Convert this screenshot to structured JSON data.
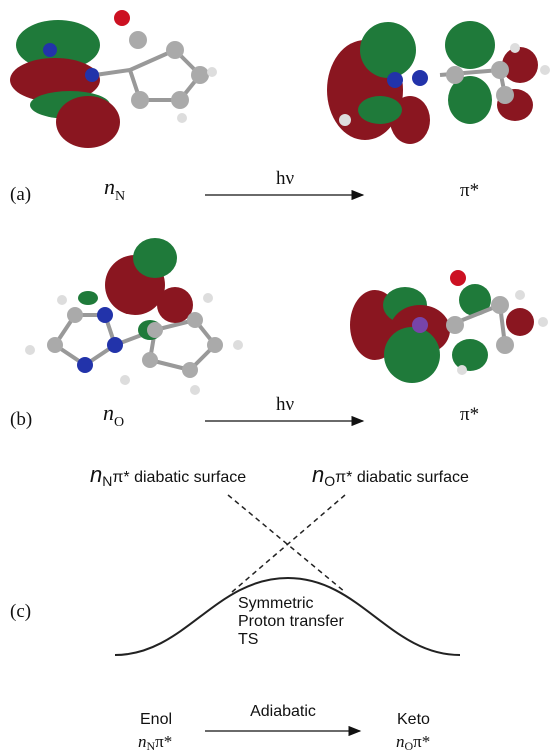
{
  "panel_a": {
    "label": "(a)",
    "left": {
      "main": "n",
      "sub": "N"
    },
    "arrow": "hν",
    "right": "π*"
  },
  "panel_b": {
    "label": "(b)",
    "left": {
      "main": "n",
      "sub": "O"
    },
    "arrow": "hν",
    "right": "π*"
  },
  "panel_c": {
    "label": "(c)",
    "surface_left": {
      "main": "n",
      "sub": "N",
      "rest": "π* diabatic surface"
    },
    "surface_right": {
      "main": "n",
      "sub": "O",
      "rest": "π* diabatic surface"
    },
    "ts": [
      "Symmetric",
      "Proton transfer",
      "TS"
    ],
    "left": {
      "name": "Enol",
      "main": "n",
      "sub": "N",
      "rest": "π*"
    },
    "arrow": "Adiabatic",
    "right": {
      "name": "Keto",
      "main": "n",
      "sub": "O",
      "rest": "π*"
    }
  }
}
